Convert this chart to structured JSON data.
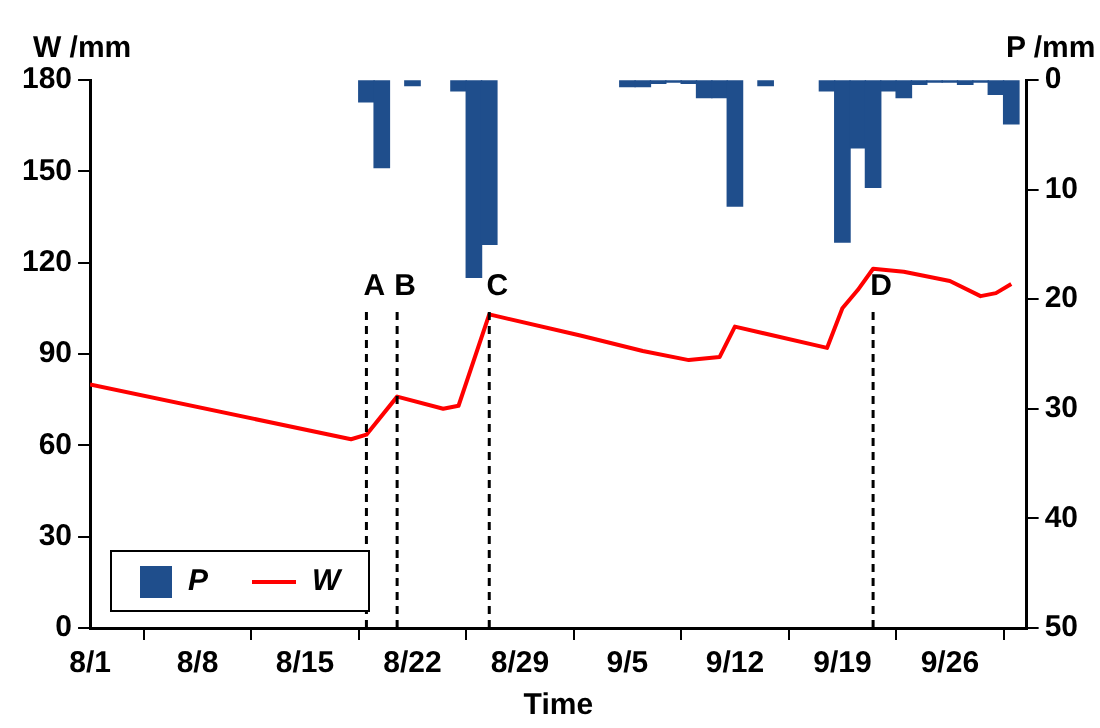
{
  "chart_data": {
    "type": "bar",
    "xlabel": "Time",
    "ylabel": "W /mm",
    "y2label": "P /mm",
    "xlim": [
      "--08-01",
      "--10-01"
    ],
    "xticks": [
      {
        "value": "--08-01",
        "label": "8/1"
      },
      {
        "value": "--08-08",
        "label": "8/8"
      },
      {
        "value": "--08-15",
        "label": "8/15"
      },
      {
        "value": "--08-22",
        "label": "8/22"
      },
      {
        "value": "--08-29",
        "label": "8/29"
      },
      {
        "value": "--09-05",
        "label": "9/5"
      },
      {
        "value": "--09-12",
        "label": "9/12"
      },
      {
        "value": "--09-19",
        "label": "9/19"
      },
      {
        "value": "--09-26",
        "label": "9/26"
      }
    ],
    "ylim": [
      0,
      180
    ],
    "yticks": [
      0,
      30,
      60,
      90,
      120,
      150,
      180
    ],
    "y2lim": [
      50,
      0
    ],
    "y2ticks": [
      0,
      10,
      20,
      30,
      40,
      50
    ],
    "series": [
      {
        "name": "P",
        "axis": "y2",
        "color": "#1f4e8c",
        "x": [
          "--08-19",
          "--08-20",
          "--08-22",
          "--08-25",
          "--08-26",
          "--08-27",
          "--09-05",
          "--09-06",
          "--09-07",
          "--09-08",
          "--09-09",
          "--09-10",
          "--09-11",
          "--09-12",
          "--09-14",
          "--09-18",
          "--09-19",
          "--09-20",
          "--09-21",
          "--09-22",
          "--09-23",
          "--09-24",
          "--09-25",
          "--09-26",
          "--09-27",
          "--09-28",
          "--09-29",
          "--09-30"
        ],
        "values": [
          2,
          8,
          0.5,
          1,
          18,
          15,
          0.6,
          0.6,
          0.3,
          0.2,
          0.3,
          1.6,
          1.6,
          11.5,
          0.5,
          1,
          14.8,
          6.2,
          9.8,
          1,
          1.6,
          0.4,
          0.2,
          0.2,
          0.4,
          0.2,
          1.3,
          4
        ]
      },
      {
        "name": "W",
        "type": "line",
        "color": "#ff0000",
        "x": [
          "--08-01",
          "--08-18",
          "--08-19",
          "--08-21",
          "--08-24",
          "--08-25",
          "--08-27",
          "--09-02",
          "--09-06",
          "--09-09",
          "--09-11",
          "--09-12",
          "--09-18",
          "--09-19",
          "--09-20",
          "--09-21",
          "--09-23",
          "--09-26",
          "--09-28",
          "--09-29",
          "--09-30"
        ],
        "values": [
          80,
          62,
          63.5,
          76,
          72,
          73,
          103,
          96,
          91,
          88,
          89,
          99,
          92,
          105,
          111,
          118,
          117,
          114,
          109,
          110,
          113
        ]
      }
    ],
    "ref_lines": [
      {
        "axis": "x",
        "value": "--08-19",
        "label": "A",
        "line_style": "dashed"
      },
      {
        "axis": "x",
        "value": "--08-21",
        "label": "B",
        "line_style": "dashed"
      },
      {
        "axis": "x",
        "value": "--08-27",
        "label": "C",
        "line_style": "dashed"
      },
      {
        "axis": "x",
        "value": "--09-21",
        "label": "D",
        "line_style": "dashed"
      }
    ],
    "legend": "bottom left",
    "grid": false,
    "marker": "none",
    "line_style": "solid"
  }
}
